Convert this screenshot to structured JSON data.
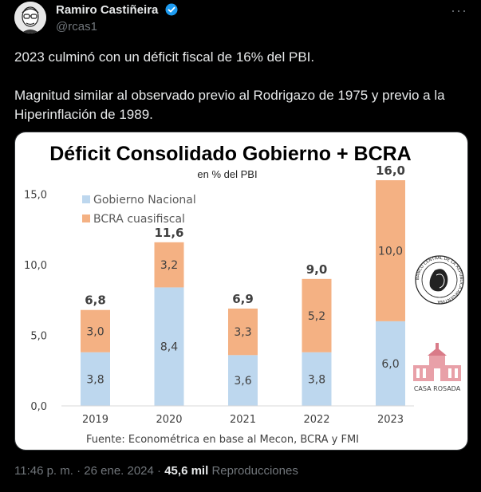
{
  "author": {
    "name": "Ramiro Castiñeira",
    "handle": "@rcas1",
    "verified": true,
    "avatar_icon": "avatar-caricature"
  },
  "more_icon": "more-dots-icon",
  "tweet": {
    "paragraphs": [
      "2023 culminó con un déficit fiscal de 16% del PBI.",
      "Magnitud similar al observado previo al Rodrigazo de 1975 y previo a la Hiperinflación de 1989."
    ]
  },
  "chart_data": {
    "type": "bar",
    "stacked": true,
    "title": "Déficit Consolidado Gobierno + BCRA",
    "subtitle": "en % del PBI",
    "categories": [
      "2019",
      "2020",
      "2021",
      "2022",
      "2023"
    ],
    "series": [
      {
        "name": "Gobierno Nacional",
        "values": [
          3.8,
          8.4,
          3.6,
          3.8,
          6.0
        ],
        "labels": [
          "3,8",
          "8,4",
          "3,6",
          "3,8",
          "6,0"
        ],
        "color": "#bdd7ee"
      },
      {
        "name": "BCRA cuasifiscal",
        "values": [
          3.0,
          3.2,
          3.3,
          5.2,
          10.0
        ],
        "labels": [
          "3,0",
          "3,2",
          "3,3",
          "5,2",
          "10,0"
        ],
        "color": "#f4b183"
      }
    ],
    "totals": [
      6.8,
      11.6,
      6.9,
      9.0,
      16.0
    ],
    "total_labels": [
      "6,8",
      "11,6",
      "6,9",
      "9,0",
      "16,0"
    ],
    "ylim": [
      0,
      16
    ],
    "yticks": [
      0,
      5,
      10,
      15
    ],
    "ytick_labels": [
      "0,0",
      "5,0",
      "10,0",
      "15,0"
    ],
    "legend_position": "top-left",
    "grid": false,
    "source": "Fuente: Econométrica en base al Mecon, BCRA y FMI",
    "logos": {
      "bcra": "BANCO CENTRAL DE LA REPÚBLICA ARGENTINA",
      "casa_rosada": "CASA ROSADA"
    }
  },
  "footer": {
    "time": "11:46 p. m.",
    "separator": "·",
    "date": "26 ene. 2024",
    "views": "45,6 mil",
    "views_label": "Reproducciones"
  }
}
